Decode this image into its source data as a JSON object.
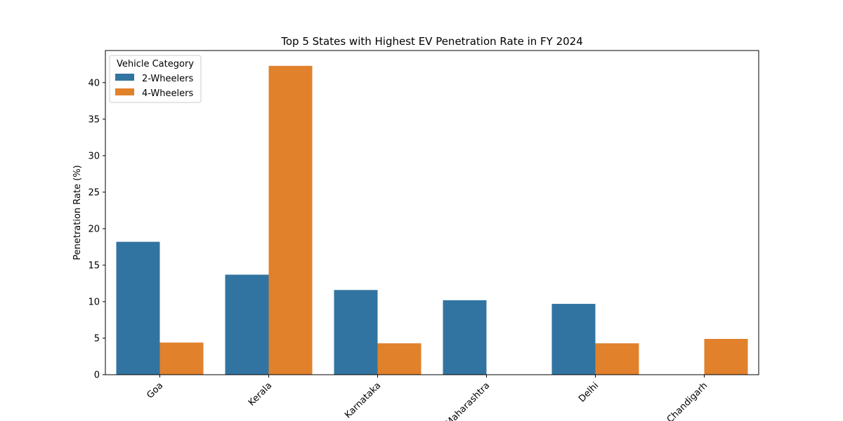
{
  "chart_data": {
    "type": "bar",
    "title": "Top 5 States with Highest EV Penetration Rate in FY 2024",
    "xlabel": "",
    "ylabel": "Penetration Rate (%)",
    "categories": [
      "Goa",
      "Kerala",
      "Karnataka",
      "Maharashtra",
      "Delhi",
      "Chandigarh"
    ],
    "series": [
      {
        "name": "2-Wheelers",
        "color": "#3274a1",
        "values": [
          18.2,
          13.7,
          11.6,
          10.2,
          9.7,
          null
        ]
      },
      {
        "name": "4-Wheelers",
        "color": "#e1812c",
        "values": [
          4.4,
          42.3,
          4.3,
          null,
          4.3,
          4.9
        ]
      }
    ],
    "ylim": [
      0,
      44.4
    ],
    "yticks": [
      0,
      5,
      10,
      15,
      20,
      25,
      30,
      35,
      40
    ],
    "legend": {
      "title": "Vehicle Category",
      "location": "top-left"
    },
    "grid": false
  }
}
